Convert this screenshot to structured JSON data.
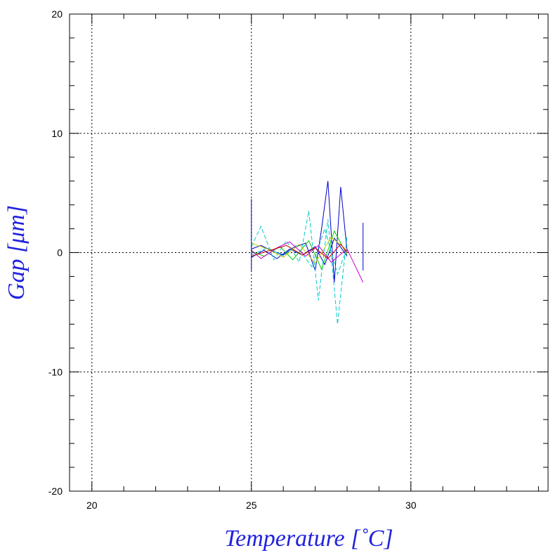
{
  "chart_data": {
    "type": "line",
    "title": "",
    "xlabel": "Temperature [˚C]",
    "ylabel": "Gap [μm]",
    "xlim": [
      19.3,
      34.3
    ],
    "ylim": [
      -20,
      20
    ],
    "x_ticks": [
      "20",
      "25",
      "30"
    ],
    "y_ticks": [
      "20",
      "10",
      "0",
      "-10",
      "-20"
    ],
    "grid": true,
    "grid_style": "dotted",
    "legend": "none",
    "series_colors": [
      "#0000cc",
      "#00cccc",
      "#00cc00",
      "#cccc00",
      "#cc00cc",
      "#cc0000"
    ],
    "series": [
      {
        "color": "#0000cc",
        "x": [
          25.0,
          25.3,
          25.6,
          26.0,
          26.3,
          26.7,
          27.0,
          27.2,
          27.4,
          27.6,
          27.8,
          28.0
        ],
        "y": [
          0.3,
          0.6,
          0.2,
          -0.2,
          0.4,
          0.8,
          -1.5,
          2.0,
          6.0,
          -2.5,
          5.5,
          0.1
        ]
      },
      {
        "color": "#0000cc",
        "x": [
          25.0,
          25.4,
          25.8,
          26.2,
          26.6,
          27.0,
          27.3,
          27.6,
          28.0
        ],
        "y": [
          -0.4,
          0.2,
          -0.5,
          0.3,
          -0.2,
          0.5,
          -1.0,
          1.2,
          -0.3
        ]
      },
      {
        "color": "#00cccc",
        "x": [
          25.0,
          25.3,
          25.7,
          26.1,
          26.5,
          26.8,
          27.1,
          27.4,
          27.7,
          28.0
        ],
        "y": [
          0.5,
          2.2,
          -0.6,
          1.0,
          -0.8,
          3.5,
          -4.0,
          2.8,
          -6.0,
          1.5
        ]
      },
      {
        "color": "#00cccc",
        "x": [
          25.0,
          25.5,
          26.0,
          26.4,
          26.9,
          27.3,
          27.7,
          28.0
        ],
        "y": [
          -0.2,
          0.4,
          -0.3,
          0.6,
          -1.2,
          2.0,
          -1.8,
          0.4
        ]
      },
      {
        "color": "#00cc00",
        "x": [
          25.0,
          25.4,
          25.9,
          26.3,
          26.8,
          27.2,
          27.6,
          28.0
        ],
        "y": [
          0.1,
          -0.3,
          0.5,
          -0.6,
          1.0,
          -1.4,
          1.8,
          -0.2
        ]
      },
      {
        "color": "#cccc00",
        "x": [
          25.0,
          25.5,
          26.0,
          26.5,
          27.0,
          27.5,
          28.0
        ],
        "y": [
          0.8,
          0.3,
          -0.4,
          0.7,
          -0.9,
          1.3,
          0.2
        ]
      },
      {
        "color": "#cc00cc",
        "x": [
          25.0,
          25.3,
          25.8,
          26.2,
          26.7,
          27.1,
          27.5,
          28.0,
          28.5
        ],
        "y": [
          0.2,
          -0.5,
          0.4,
          0.9,
          -0.3,
          0.6,
          -0.8,
          0.3,
          -2.5
        ]
      },
      {
        "color": "#cc0000",
        "x": [
          25.0,
          25.6,
          26.1,
          26.6,
          27.0,
          27.4,
          27.8,
          28.0
        ],
        "y": [
          -0.3,
          0.2,
          0.6,
          -0.2,
          0.4,
          -0.5,
          0.7,
          0.0
        ]
      },
      {
        "color": "#0000cc",
        "x": [
          25.0,
          25.0
        ],
        "y": [
          -1.5,
          4.5
        ]
      },
      {
        "color": "#0000cc",
        "x": [
          28.5,
          28.5
        ],
        "y": [
          -1.5,
          2.5
        ]
      }
    ]
  }
}
